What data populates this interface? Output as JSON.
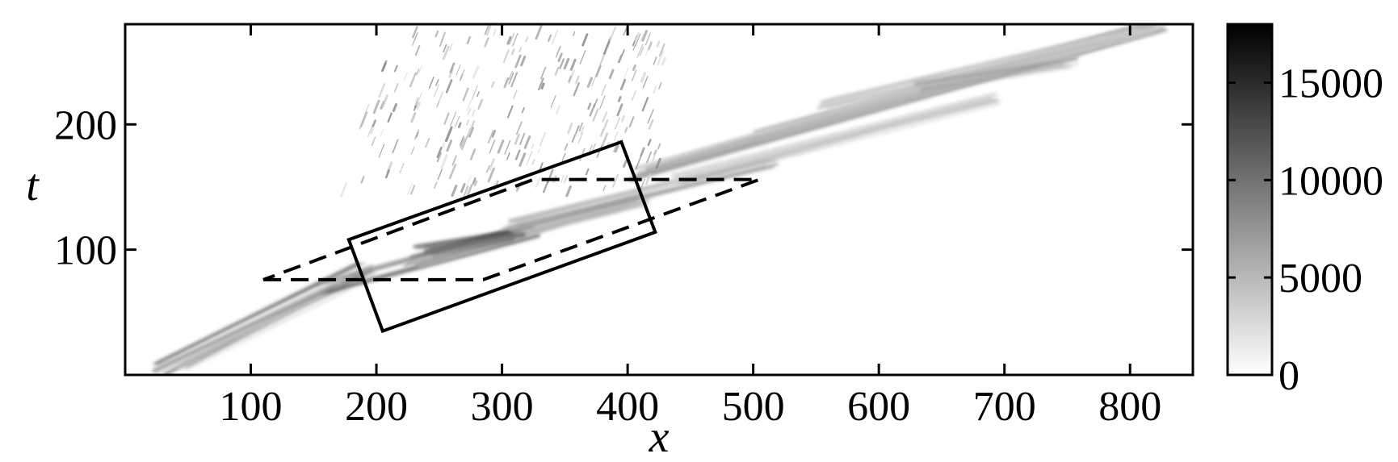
{
  "chart_data": {
    "type": "heatmap",
    "title": "",
    "xlabel": "x",
    "ylabel": "t",
    "xlim": [
      0,
      850
    ],
    "ylim": [
      0,
      280
    ],
    "xticks": [
      100,
      200,
      300,
      400,
      500,
      600,
      700,
      800
    ],
    "yticks": [
      100,
      200
    ],
    "xtick_labels": [
      "100",
      "200",
      "300",
      "400",
      "500",
      "600",
      "700",
      "800"
    ],
    "ytick_labels": [
      "100",
      "200"
    ],
    "colormap": "gray-reversed",
    "colorbar": {
      "range": [
        0,
        18000
      ],
      "ticks": [
        0,
        5000,
        10000,
        15000
      ],
      "tick_labels": [
        "0",
        "5000",
        "10000",
        "15000"
      ],
      "color_low": "#ffffff",
      "color_high": "#000000"
    },
    "annotations": {
      "solid_box": [
        [
          205,
          35
        ],
        [
          178,
          108
        ],
        [
          395,
          186
        ],
        [
          422,
          114
        ]
      ],
      "dashed_region": [
        [
          110,
          76
        ],
        [
          285,
          76
        ],
        [
          505,
          156
        ],
        [
          325,
          156
        ]
      ]
    },
    "streaks": [
      {
        "x": [
          20,
          200
        ],
        "t": [
          5,
          85
        ],
        "intensity": 0.8
      },
      {
        "x": [
          40,
          180
        ],
        "t": [
          8,
          72
        ],
        "intensity": 0.5
      },
      {
        "x": [
          150,
          330
        ],
        "t": [
          70,
          115
        ],
        "intensity": 0.9
      },
      {
        "x": [
          220,
          420
        ],
        "t": [
          90,
          140
        ],
        "intensity": 0.7
      },
      {
        "x": [
          230,
          320
        ],
        "t": [
          100,
          112
        ],
        "intensity": 1.0
      },
      {
        "x": [
          300,
          520
        ],
        "t": [
          120,
          170
        ],
        "intensity": 0.6
      },
      {
        "x": [
          400,
          830
        ],
        "t": [
          160,
          280
        ],
        "intensity": 0.6
      },
      {
        "x": [
          500,
          800
        ],
        "t": [
          190,
          270
        ],
        "intensity": 0.45
      },
      {
        "x": [
          550,
          820
        ],
        "t": [
          215,
          275
        ],
        "intensity": 0.35
      },
      {
        "x": [
          430,
          700
        ],
        "t": [
          155,
          220
        ],
        "intensity": 0.4
      },
      {
        "x": [
          620,
          760
        ],
        "t": [
          230,
          250
        ],
        "intensity": 0.55
      }
    ],
    "scatter_region": {
      "x": [
        170,
        430
      ],
      "t": [
        150,
        280
      ],
      "intensity": 0.5
    }
  }
}
